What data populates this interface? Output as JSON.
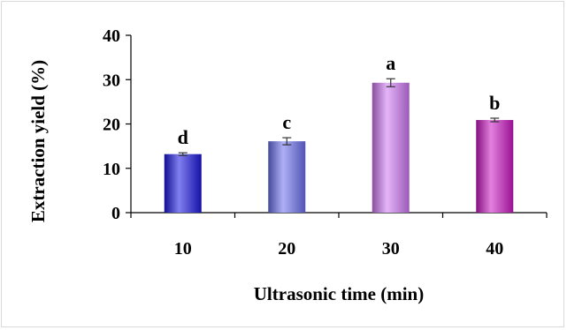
{
  "chart_data": {
    "type": "bar",
    "categories": [
      "10",
      "20",
      "30",
      "40"
    ],
    "values": [
      13.2,
      16.1,
      29.3,
      20.9
    ],
    "errors": [
      0.3,
      0.8,
      0.9,
      0.4
    ],
    "significance_labels": [
      "d",
      "c",
      "a",
      "b"
    ],
    "bar_colors": [
      "#1a16e0",
      "#6b70ee",
      "#cf78f4",
      "#cc18c4"
    ],
    "xlabel": "Ultrasonic time (min)",
    "ylabel": "Extraction yield (%)",
    "ylim": [
      0,
      40
    ],
    "yticks": [
      "0",
      "10",
      "20",
      "30",
      "40"
    ],
    "grid": false,
    "legend": "none"
  }
}
